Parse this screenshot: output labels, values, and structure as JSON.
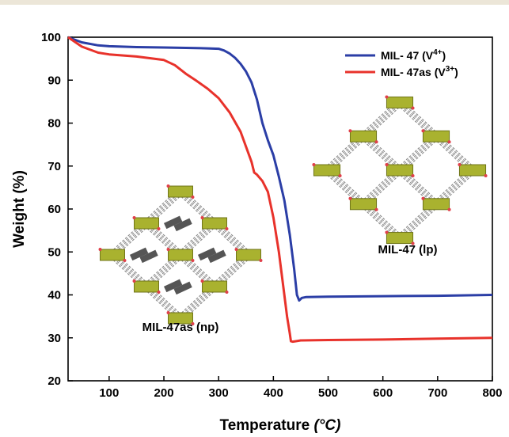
{
  "chart_data": {
    "type": "line",
    "xlabel": "Temperature",
    "xlabel_unit": "(°C)",
    "ylabel": "Weight (%)",
    "xlim": [
      25,
      800
    ],
    "ylim": [
      20,
      100
    ],
    "xticks": [
      100,
      200,
      300,
      400,
      500,
      600,
      700,
      800
    ],
    "yticks": [
      20,
      30,
      40,
      50,
      60,
      70,
      80,
      90,
      100
    ],
    "legend_position": "top-right",
    "grid": false,
    "series": [
      {
        "name": "MIL- 47 (V⁴⁺)",
        "name_base": "MIL- 47 (V",
        "name_sup": "4+",
        "name_end": ")",
        "color": "#2b3ea6",
        "x": [
          25,
          50,
          80,
          100,
          150,
          200,
          250,
          280,
          300,
          310,
          320,
          330,
          340,
          350,
          360,
          370,
          380,
          390,
          400,
          410,
          420,
          430,
          438,
          443,
          447,
          452,
          460,
          500,
          600,
          700,
          800
        ],
        "y": [
          100,
          98.8,
          98.1,
          97.9,
          97.7,
          97.6,
          97.5,
          97.4,
          97.3,
          96.9,
          96.2,
          95.2,
          93.8,
          92,
          89.5,
          85.5,
          80,
          76,
          72.5,
          67.5,
          62,
          54,
          46,
          40,
          38.7,
          39.3,
          39.5,
          39.6,
          39.7,
          39.8,
          40
        ]
      },
      {
        "name": "MIL- 47as (V³⁺)",
        "name_base": "MIL- 47as (V",
        "name_sup": "3+",
        "name_end": ")",
        "color": "#e8322b",
        "x": [
          25,
          50,
          80,
          100,
          150,
          200,
          220,
          240,
          260,
          280,
          300,
          320,
          340,
          360,
          365,
          370,
          380,
          390,
          400,
          410,
          420,
          425,
          430,
          432,
          435,
          440,
          450,
          500,
          600,
          700,
          800
        ],
        "y": [
          100,
          97.8,
          96.4,
          96,
          95.5,
          94.7,
          93.5,
          91.5,
          89.8,
          88,
          85.8,
          82.5,
          78,
          71,
          68.5,
          68,
          66.5,
          64,
          58,
          50,
          40,
          35,
          31,
          29.2,
          29.1,
          29.2,
          29.4,
          29.5,
          29.6,
          29.8,
          30
        ]
      }
    ],
    "annotations": [
      {
        "id": "lp",
        "text": "MIL-47 (lp)"
      },
      {
        "id": "np",
        "text": "MIL-47as (np)"
      }
    ]
  }
}
